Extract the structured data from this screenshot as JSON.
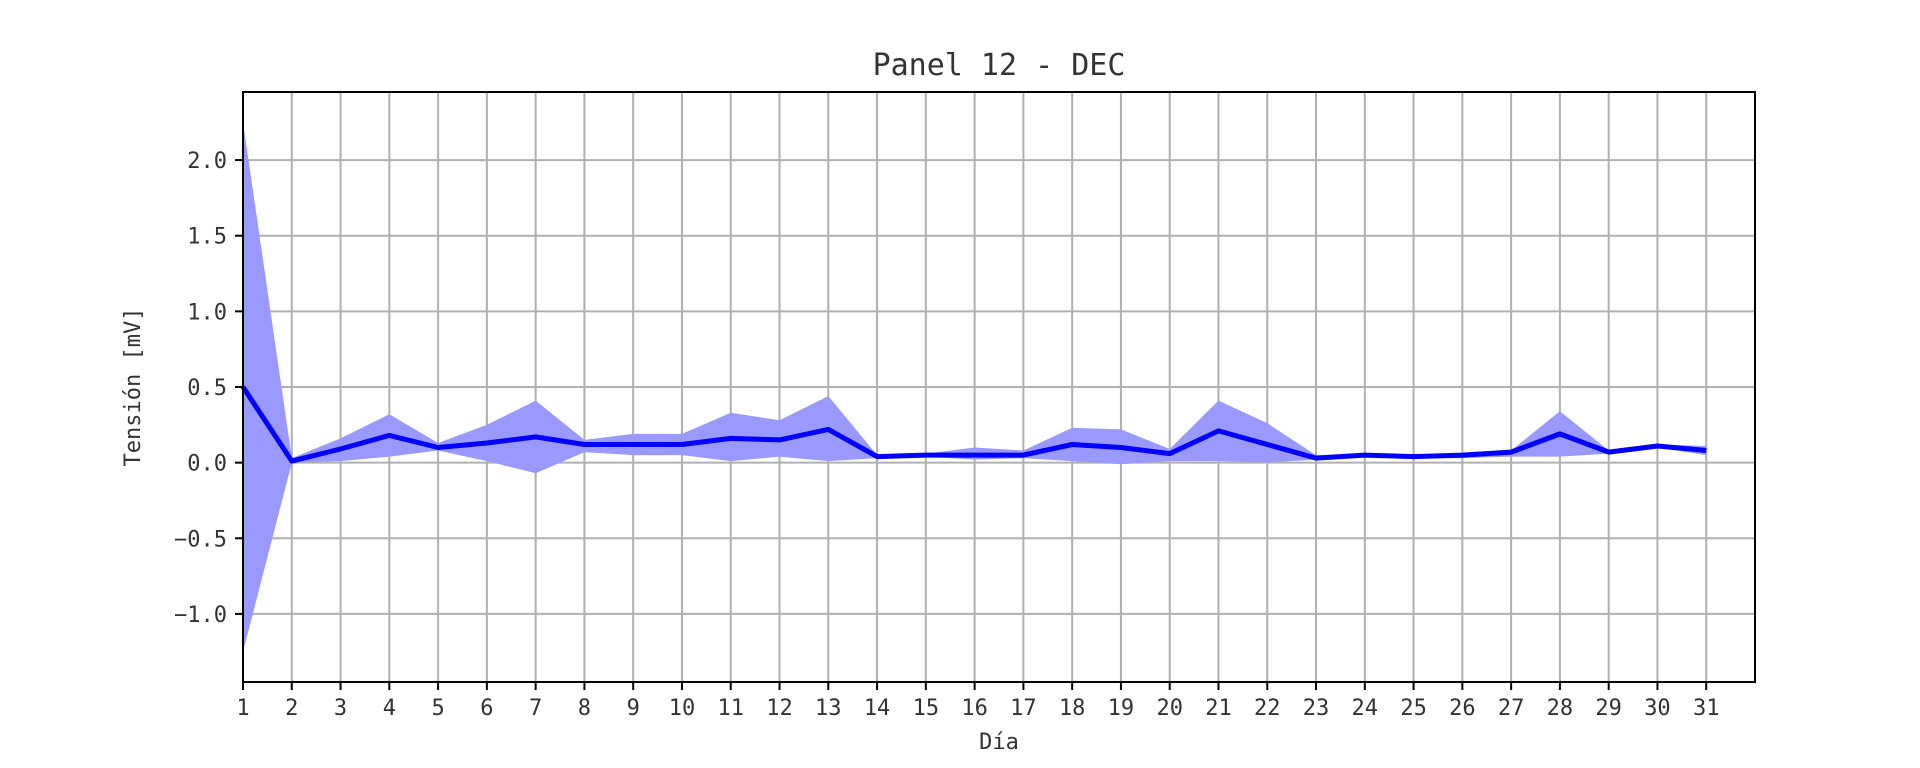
{
  "chart_data": {
    "type": "line",
    "title": "Panel 12 - DEC",
    "xlabel": "Día",
    "ylabel": "Tensión [mV]",
    "x": [
      1,
      2,
      3,
      4,
      5,
      6,
      7,
      8,
      9,
      10,
      11,
      12,
      13,
      14,
      15,
      16,
      17,
      18,
      19,
      20,
      21,
      22,
      23,
      24,
      25,
      26,
      27,
      28,
      29,
      30,
      31
    ],
    "x_ticks": [
      "1",
      "2",
      "3",
      "4",
      "5",
      "6",
      "7",
      "8",
      "9",
      "10",
      "11",
      "12",
      "13",
      "14",
      "15",
      "16",
      "17",
      "18",
      "19",
      "20",
      "21",
      "22",
      "23",
      "24",
      "25",
      "26",
      "27",
      "28",
      "29",
      "30",
      "31"
    ],
    "y_ticks": [
      "−1.0",
      "−0.5",
      "0.0",
      "0.5",
      "1.0",
      "1.5",
      "2.0"
    ],
    "y_tick_values": [
      -1.0,
      -0.5,
      0.0,
      0.5,
      1.0,
      1.5,
      2.0
    ],
    "xlim": [
      1,
      32
    ],
    "ylim": [
      -1.45,
      2.45
    ],
    "grid": true,
    "series": [
      {
        "values": [
          0.5,
          0.01,
          0.09,
          0.18,
          0.1,
          0.13,
          0.17,
          0.12,
          0.12,
          0.12,
          0.16,
          0.15,
          0.22,
          0.04,
          0.05,
          0.05,
          0.05,
          0.12,
          0.1,
          0.06,
          0.21,
          0.12,
          0.03,
          0.05,
          0.04,
          0.05,
          0.07,
          0.19,
          0.07,
          0.11,
          0.08
        ],
        "color": "#0000ff"
      }
    ],
    "band": {
      "upper": [
        2.25,
        0.03,
        0.16,
        0.32,
        0.13,
        0.25,
        0.41,
        0.15,
        0.19,
        0.19,
        0.33,
        0.28,
        0.44,
        0.05,
        0.06,
        0.1,
        0.08,
        0.23,
        0.22,
        0.09,
        0.41,
        0.26,
        0.05,
        0.06,
        0.05,
        0.05,
        0.08,
        0.34,
        0.08,
        0.12,
        0.11
      ],
      "lower": [
        -1.25,
        0.0,
        0.01,
        0.04,
        0.08,
        0.01,
        -0.07,
        0.07,
        0.05,
        0.05,
        0.01,
        0.04,
        0.01,
        0.03,
        0.04,
        0.02,
        0.03,
        0.01,
        -0.01,
        0.01,
        0.01,
        0.0,
        0.02,
        0.04,
        0.03,
        0.03,
        0.04,
        0.04,
        0.06,
        0.1,
        0.05
      ],
      "color": "#9999ff"
    }
  }
}
